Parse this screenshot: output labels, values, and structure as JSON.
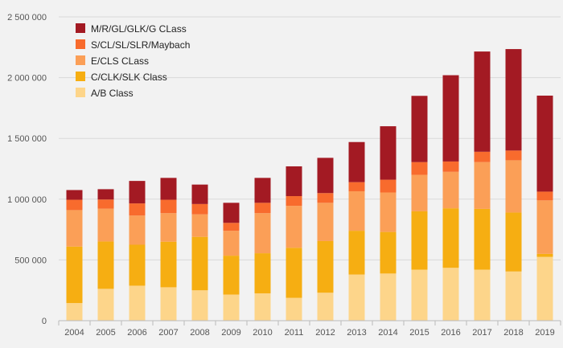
{
  "chart_data": {
    "type": "bar",
    "stacked": true,
    "categories": [
      "2004",
      "2005",
      "2006",
      "2007",
      "2008",
      "2009",
      "2010",
      "2011",
      "2012",
      "2013",
      "2014",
      "2015",
      "2016",
      "2017",
      "2018",
      "2019"
    ],
    "series": [
      {
        "name": "A/B Class",
        "color": "#fdd58a",
        "values": [
          145000,
          262000,
          288000,
          275000,
          250000,
          215000,
          225000,
          188000,
          230000,
          380000,
          388000,
          420000,
          435000,
          420000,
          405000,
          525000
        ]
      },
      {
        "name": "C/CLK/SLK Class",
        "color": "#f6ae12",
        "values": [
          465000,
          390000,
          337000,
          375000,
          440000,
          320000,
          330000,
          412000,
          425000,
          360000,
          342000,
          480000,
          490000,
          500000,
          485000,
          25000
        ]
      },
      {
        "name": "E/CLS CLass",
        "color": "#fb9f57",
        "values": [
          300000,
          270000,
          240000,
          235000,
          185000,
          205000,
          330000,
          345000,
          315000,
          325000,
          325000,
          300000,
          300000,
          385000,
          430000,
          440000
        ]
      },
      {
        "name": "S/CL/SL/SLR/Maybach",
        "color": "#f86b2d",
        "values": [
          85000,
          75000,
          100000,
          110000,
          85000,
          65000,
          85000,
          80000,
          80000,
          75000,
          105000,
          105000,
          85000,
          85000,
          80000,
          72000
        ]
      },
      {
        "name": "M/R/GL/GLK/G CLass",
        "color": "#a31a23",
        "values": [
          80000,
          85000,
          185000,
          180000,
          160000,
          165000,
          205000,
          245000,
          290000,
          330000,
          440000,
          545000,
          710000,
          825000,
          835000,
          790000
        ]
      }
    ],
    "legend_order": [
      "M/R/GL/GLK/G CLass",
      "S/CL/SL/SLR/Maybach",
      "E/CLS CLass",
      "C/CLK/SLK Class",
      "A/B Class"
    ],
    "legend_position": "top-left",
    "ylim": [
      0,
      2500000
    ],
    "y_ticks": [
      0,
      500000,
      1000000,
      1500000,
      2000000,
      2500000
    ],
    "y_tick_labels": [
      "0",
      "500 000",
      "1 000 000",
      "1 500 000",
      "2 000 000",
      "2 500 000"
    ],
    "grid": true,
    "gridline_color": "#d9d9d9",
    "axis_color": "#bbbbbb"
  }
}
